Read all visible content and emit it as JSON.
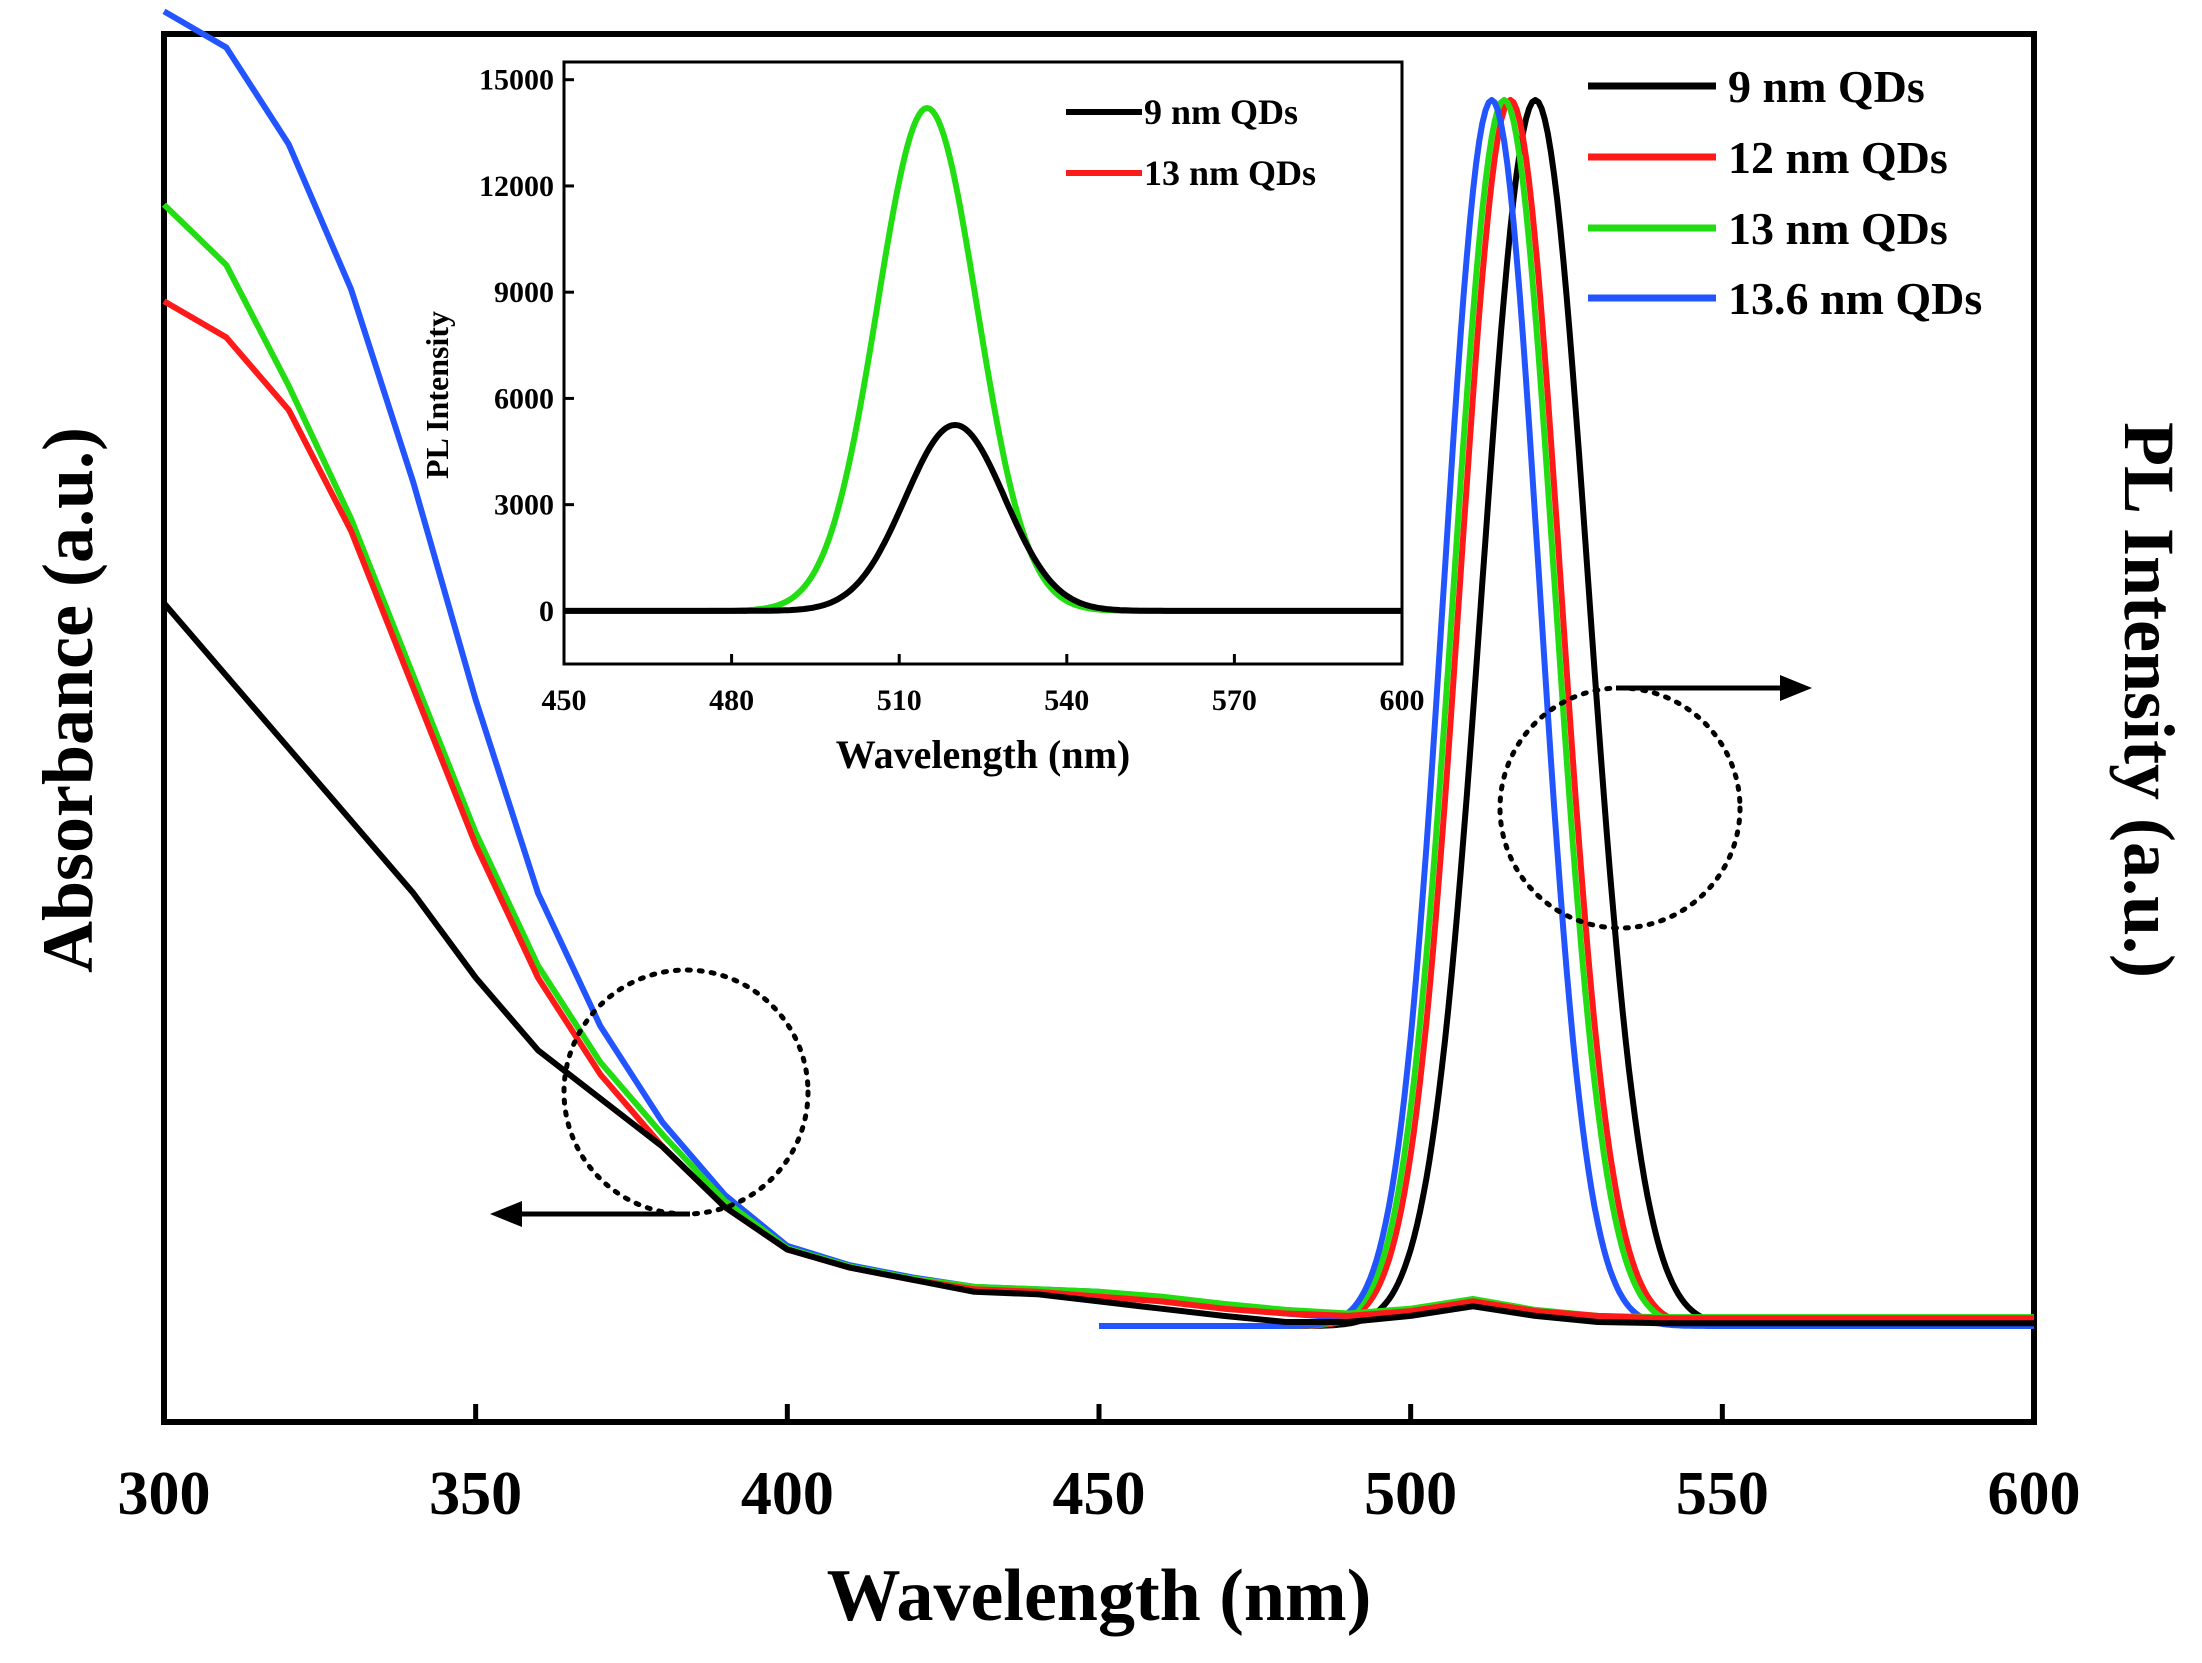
{
  "colors": {
    "9 nm QDs": "#000000",
    "12 nm QDs": "#ff1a1a",
    "13 nm QDs": "#22dd11",
    "13.6 nm QDs": "#2255ff"
  },
  "chart_data": [
    {
      "type": "line",
      "title": "",
      "xlabel": "Wavelength (nm)",
      "ylabel": "Absorbance (a.u.)",
      "ylabel_right": "PL Intensity (a.u.)",
      "xlim": [
        300,
        600
      ],
      "xticks": [
        "300",
        "350",
        "400",
        "450",
        "500",
        "550",
        "600"
      ],
      "legend_position": "top-right",
      "legend": [
        "9 nm QDs",
        "12 nm QDs",
        "13 nm QDs",
        "13.6 nm QDs"
      ],
      "absorbance_series": [
        {
          "name": "9 nm QDs",
          "x": [
            300,
            310,
            320,
            330,
            340,
            350,
            360,
            370,
            380,
            390,
            400,
            410,
            420,
            430,
            440,
            450,
            460,
            470,
            480,
            490,
            500,
            510,
            520,
            530,
            540,
            550,
            560,
            580,
            600
          ],
          "y": [
            0.6,
            0.54,
            0.48,
            0.42,
            0.36,
            0.29,
            0.23,
            0.19,
            0.15,
            0.1,
            0.065,
            0.05,
            0.04,
            0.03,
            0.028,
            0.022,
            0.016,
            0.01,
            0.005,
            0.005,
            0.01,
            0.018,
            0.01,
            0.005,
            0.004,
            0.004,
            0.004,
            0.004,
            0.004
          ]
        },
        {
          "name": "12 nm QDs",
          "x": [
            300,
            310,
            320,
            330,
            340,
            350,
            360,
            370,
            380,
            390,
            400,
            410,
            420,
            430,
            440,
            450,
            460,
            470,
            480,
            490,
            500,
            510,
            520,
            530,
            540,
            550,
            560,
            580,
            600
          ],
          "y": [
            0.85,
            0.82,
            0.76,
            0.66,
            0.53,
            0.4,
            0.29,
            0.21,
            0.15,
            0.1,
            0.065,
            0.05,
            0.04,
            0.032,
            0.03,
            0.026,
            0.022,
            0.016,
            0.012,
            0.01,
            0.014,
            0.022,
            0.014,
            0.01,
            0.008,
            0.008,
            0.008,
            0.008,
            0.008
          ]
        },
        {
          "name": "13 nm QDs",
          "x": [
            300,
            310,
            320,
            330,
            340,
            350,
            360,
            370,
            380,
            390,
            400,
            410,
            420,
            430,
            440,
            450,
            460,
            470,
            480,
            490,
            500,
            510,
            520,
            530,
            540,
            550,
            560,
            580,
            600
          ],
          "y": [
            0.93,
            0.88,
            0.78,
            0.67,
            0.54,
            0.41,
            0.3,
            0.22,
            0.16,
            0.105,
            0.066,
            0.051,
            0.041,
            0.034,
            0.032,
            0.03,
            0.026,
            0.02,
            0.015,
            0.012,
            0.016,
            0.024,
            0.015,
            0.01,
            0.009,
            0.009,
            0.009,
            0.009,
            0.009
          ]
        },
        {
          "name": "13.6 nm QDs",
          "x": [
            300,
            310,
            320,
            330,
            340,
            350,
            360,
            370,
            380,
            390,
            400,
            410,
            420,
            430,
            440,
            450,
            460,
            470,
            480,
            490,
            500,
            510,
            520,
            530,
            540,
            550,
            560,
            580,
            600
          ],
          "y": [
            1.09,
            1.06,
            0.98,
            0.86,
            0.7,
            0.52,
            0.36,
            0.25,
            0.17,
            0.11,
            0.068,
            0.052,
            0.042,
            0.034,
            0.032,
            0.03,
            0.025,
            0.018,
            0.012,
            0.008,
            0.012,
            0.02,
            0.012,
            0.008,
            0.006,
            0.006,
            0.006,
            0.006,
            0.006
          ]
        }
      ],
      "pl_series": [
        {
          "name": "9 nm QDs",
          "peak_nm": 520,
          "fwhm_nm": 20,
          "height": 1.0,
          "x_start": 450
        },
        {
          "name": "12 nm QDs",
          "peak_nm": 516,
          "fwhm_nm": 19,
          "height": 1.0,
          "x_start": 450
        },
        {
          "name": "13 nm QDs",
          "peak_nm": 515,
          "fwhm_nm": 19,
          "height": 1.0,
          "x_start": 450
        },
        {
          "name": "13.6 nm QDs",
          "peak_nm": 513,
          "fwhm_nm": 18,
          "height": 1.0,
          "x_start": 450
        }
      ],
      "annotations": [
        "absorbance-arrow-left",
        "pl-arrow-right"
      ]
    },
    {
      "type": "line",
      "title": "",
      "xlabel": "Wavelength (nm)",
      "ylabel": "PL Intensity",
      "xlim": [
        450,
        600
      ],
      "ylim": [
        -1500,
        15500
      ],
      "xticks": [
        450,
        480,
        510,
        540,
        570,
        600
      ],
      "yticks": [
        0,
        3000,
        6000,
        9000,
        12000,
        15000
      ],
      "legend_position": "top-right",
      "series": [
        {
          "name": "9 nm QDs",
          "peak_nm": 520,
          "fwhm_nm": 21,
          "peak_value": 5250
        },
        {
          "name": "13 nm QDs",
          "peak_nm": 515,
          "fwhm_nm": 21,
          "peak_value": 14200
        }
      ]
    }
  ]
}
